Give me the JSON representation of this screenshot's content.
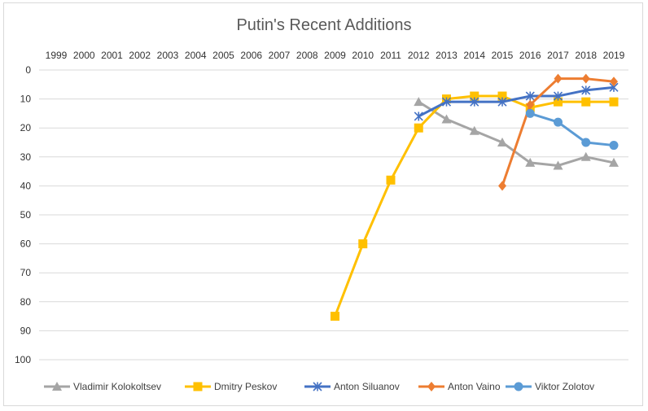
{
  "chart_data": {
    "type": "line",
    "title": "Putin's Recent Additions",
    "xlabel": "",
    "ylabel": "",
    "x": [
      "1999",
      "2000",
      "2001",
      "2002",
      "2003",
      "2004",
      "2005",
      "2006",
      "2007",
      "2008",
      "2009",
      "2010",
      "2011",
      "2012",
      "2013",
      "2014",
      "2015",
      "2016",
      "2017",
      "2018",
      "2019"
    ],
    "yticks": [
      "0",
      "10",
      "20",
      "30",
      "40",
      "50",
      "60",
      "70",
      "80",
      "90",
      "100"
    ],
    "ylim": [
      0,
      100
    ],
    "y_reversed": true,
    "grid": true,
    "legend_position": "bottom",
    "series": [
      {
        "name": "Vladimir Kolokoltsev",
        "color": "#a5a5a5",
        "marker": "triangle",
        "values": [
          null,
          null,
          null,
          null,
          null,
          null,
          null,
          null,
          null,
          null,
          null,
          null,
          null,
          11,
          17,
          21,
          25,
          32,
          33,
          30,
          32
        ]
      },
      {
        "name": "Dmitry Peskov",
        "color": "#ffc000",
        "marker": "square",
        "values": [
          null,
          null,
          null,
          null,
          null,
          null,
          null,
          null,
          null,
          null,
          85,
          60,
          38,
          20,
          10,
          9,
          9,
          13,
          11,
          11,
          11
        ]
      },
      {
        "name": "Anton Siluanov",
        "color": "#4472c4",
        "marker": "asterisk",
        "values": [
          null,
          null,
          null,
          null,
          null,
          null,
          null,
          null,
          null,
          null,
          null,
          null,
          null,
          16,
          11,
          11,
          11,
          9,
          9,
          7,
          6
        ]
      },
      {
        "name": "Anton Vaino",
        "color": "#ed7d31",
        "marker": "diamond",
        "values": [
          null,
          null,
          null,
          null,
          null,
          null,
          null,
          null,
          null,
          null,
          null,
          null,
          null,
          null,
          null,
          null,
          40,
          12,
          3,
          3,
          4
        ]
      },
      {
        "name": "Viktor Zolotov",
        "color": "#5b9bd5",
        "marker": "circle",
        "values": [
          null,
          null,
          null,
          null,
          null,
          null,
          null,
          null,
          null,
          null,
          null,
          null,
          null,
          null,
          null,
          null,
          null,
          15,
          18,
          25,
          26
        ]
      }
    ]
  }
}
